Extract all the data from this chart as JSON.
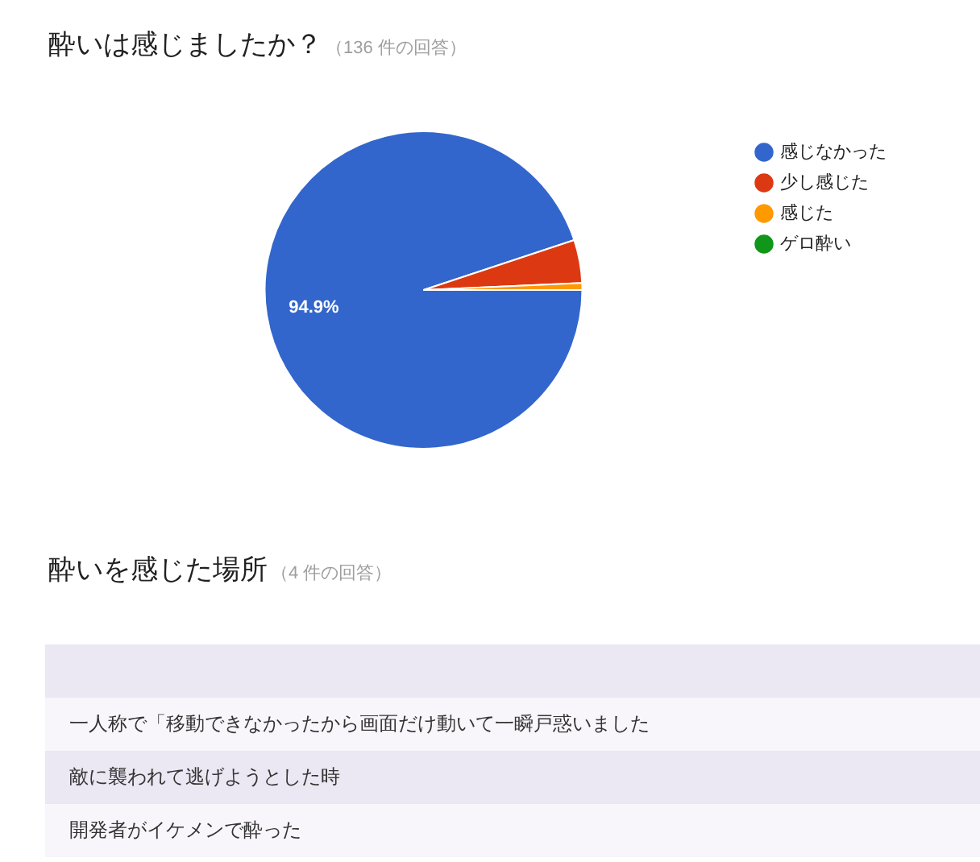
{
  "chart_data": [
    {
      "type": "pie",
      "title": "酔いは感じましたか？",
      "subtitle": "（136 件の回答）",
      "categories": [
        "感じなかった",
        "少し感じた",
        "感じた",
        "ゲロ酔い"
      ],
      "values": [
        94.9,
        4.4,
        0.7,
        0
      ],
      "colors": [
        "#3366cc",
        "#dc3912",
        "#ff9900",
        "#109618"
      ],
      "value_labels": [
        "94.9%",
        null,
        null,
        null
      ],
      "legend": "top right"
    },
    {
      "type": "other",
      "title": "酔いを感じた場所",
      "subtitle": "（4 件の回答）",
      "annotations": [
        "一人称で「移動できなかったから画面だけ動いて一瞬戸惑いました",
        "敵に襲われて逃げようとした時",
        "開発者がイケメンで酔った"
      ]
    }
  ]
}
